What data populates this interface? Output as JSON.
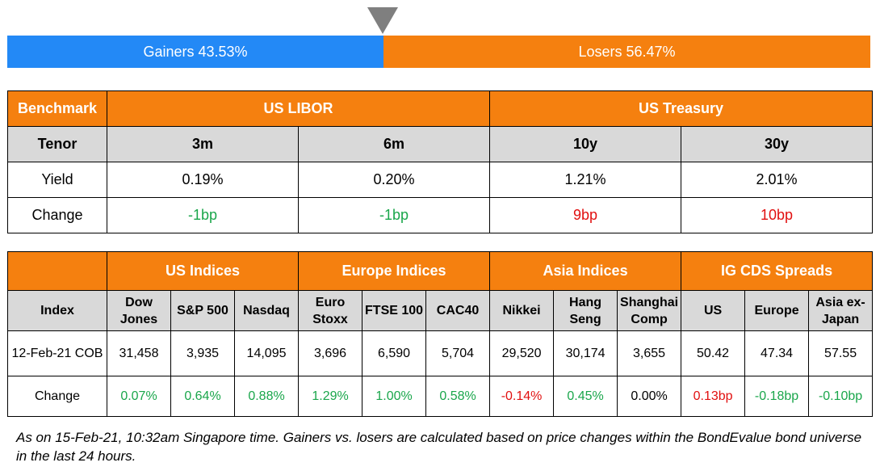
{
  "ratio_bar": {
    "gainers_label": "Gainers 43.53%",
    "losers_label": "Losers 56.47%",
    "gainers_fraction": 0.4353,
    "colors": {
      "gainers": "#2389f6",
      "losers": "#f5800f",
      "pointer": "#7f7f7f"
    }
  },
  "benchmark_table": {
    "header": {
      "label": "Benchmark",
      "groups": [
        "US LIBOR",
        "US Treasury"
      ]
    },
    "tenor_row": {
      "label": "Tenor",
      "values": [
        "3m",
        "6m",
        "10y",
        "30y"
      ]
    },
    "yield_row": {
      "label": "Yield",
      "values": [
        "0.19%",
        "0.20%",
        "1.21%",
        "2.01%"
      ]
    },
    "change_row": {
      "label": "Change",
      "values": [
        "-1bp",
        "-1bp",
        "9bp",
        "10bp"
      ]
    }
  },
  "indices_table": {
    "groups": [
      "US Indices",
      "Europe Indices",
      "Asia Indices",
      "IG CDS Spreads"
    ],
    "index_label": "Index",
    "columns": [
      [
        "Dow",
        "Jones"
      ],
      [
        "S&P 500"
      ],
      [
        "Nasdaq"
      ],
      [
        "Euro",
        "Stoxx"
      ],
      [
        "FTSE 100"
      ],
      [
        "CAC40"
      ],
      [
        "Nikkei"
      ],
      [
        "Hang",
        "Seng"
      ],
      [
        "Shanghai",
        "Comp"
      ],
      [
        "US"
      ],
      [
        "Europe"
      ],
      [
        "Asia ex-",
        "Japan"
      ]
    ],
    "level_row": {
      "label": "12-Feb-21 COB",
      "values": [
        "31,458",
        "3,935",
        "14,095",
        "3,696",
        "6,590",
        "5,704",
        "29,520",
        "30,174",
        "3,655",
        "50.42",
        "47.34",
        "57.55"
      ]
    },
    "change_row": {
      "label": "Change",
      "values": [
        "0.07%",
        "0.64%",
        "0.88%",
        "1.29%",
        "1.00%",
        "0.58%",
        "-0.14%",
        "0.45%",
        "0.00%",
        "0.13bp",
        "-0.18bp",
        "-0.10bp"
      ]
    }
  },
  "note": "As on 15-Feb-21, 10:32am Singapore time. Gainers vs. losers are calculated based on price changes within the BondEvalue bond universe in the last 24 hours."
}
